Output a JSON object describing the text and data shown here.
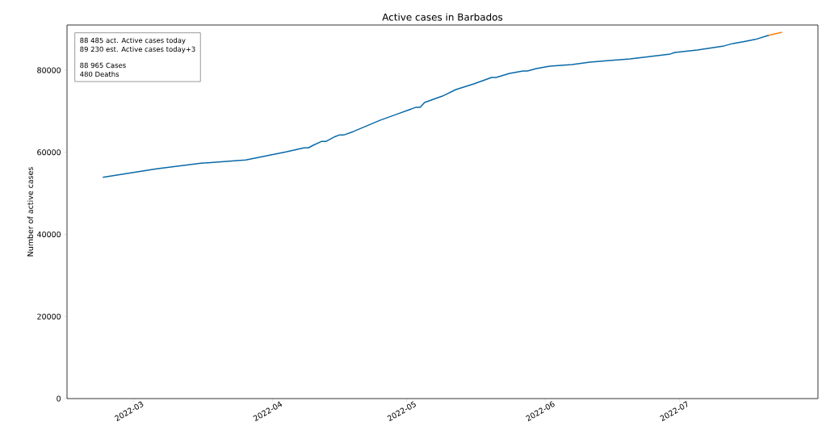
{
  "chart_data": {
    "type": "line",
    "title": "Active cases in Barbados",
    "ylabel": "Number of active cases",
    "annotations": [
      "88 485 act. Active cases today",
      "89 230 est. Active cases today+3",
      "88 965 Cases",
      "480 Deaths"
    ],
    "xlim": [
      "2022-02-14",
      "2022-08-01"
    ],
    "xticks": [
      {
        "value": "2022-03-01",
        "label": "2022-03"
      },
      {
        "value": "2022-04-01",
        "label": "2022-04"
      },
      {
        "value": "2022-05-01",
        "label": "2022-05"
      },
      {
        "value": "2022-06-01",
        "label": "2022-06"
      },
      {
        "value": "2022-07-01",
        "label": "2022-07"
      }
    ],
    "ylim": [
      0,
      91000
    ],
    "yticks": [
      0,
      20000,
      40000,
      60000,
      80000
    ],
    "series": [
      {
        "color": "#0868a8",
        "x": [
          "2022-02-22",
          "2022-03-06",
          "2022-03-16",
          "2022-03-26",
          "2022-04-04",
          "2022-04-08",
          "2022-04-09",
          "2022-04-10",
          "2022-04-12",
          "2022-04-13",
          "2022-04-15",
          "2022-04-16",
          "2022-04-17",
          "2022-04-19",
          "2022-04-22",
          "2022-04-25",
          "2022-04-29",
          "2022-05-03",
          "2022-05-04",
          "2022-05-05",
          "2022-05-09",
          "2022-05-12",
          "2022-05-16",
          "2022-05-20",
          "2022-05-21",
          "2022-05-24",
          "2022-05-27",
          "2022-05-28",
          "2022-05-30",
          "2022-06-02",
          "2022-06-07",
          "2022-06-11",
          "2022-06-20",
          "2022-06-29",
          "2022-06-30",
          "2022-07-05",
          "2022-07-11",
          "2022-07-13",
          "2022-07-16",
          "2022-07-18",
          "2022-07-21"
        ],
        "values": [
          53900,
          55960,
          57340,
          58130,
          60100,
          61080,
          61080,
          61670,
          62660,
          62660,
          63840,
          64240,
          64240,
          65020,
          66400,
          67780,
          69360,
          70930,
          70930,
          72120,
          73690,
          75270,
          76650,
          78230,
          78230,
          79210,
          79800,
          79800,
          80390,
          80980,
          81380,
          81970,
          82760,
          83940,
          84330,
          84920,
          85910,
          86500,
          87090,
          87490,
          88485
        ]
      },
      {
        "color": "#ff7f0e",
        "x": [
          "2022-07-21",
          "2022-07-22",
          "2022-07-23",
          "2022-07-24"
        ],
        "values": [
          88485,
          88730,
          88980,
          89230
        ]
      }
    ]
  }
}
